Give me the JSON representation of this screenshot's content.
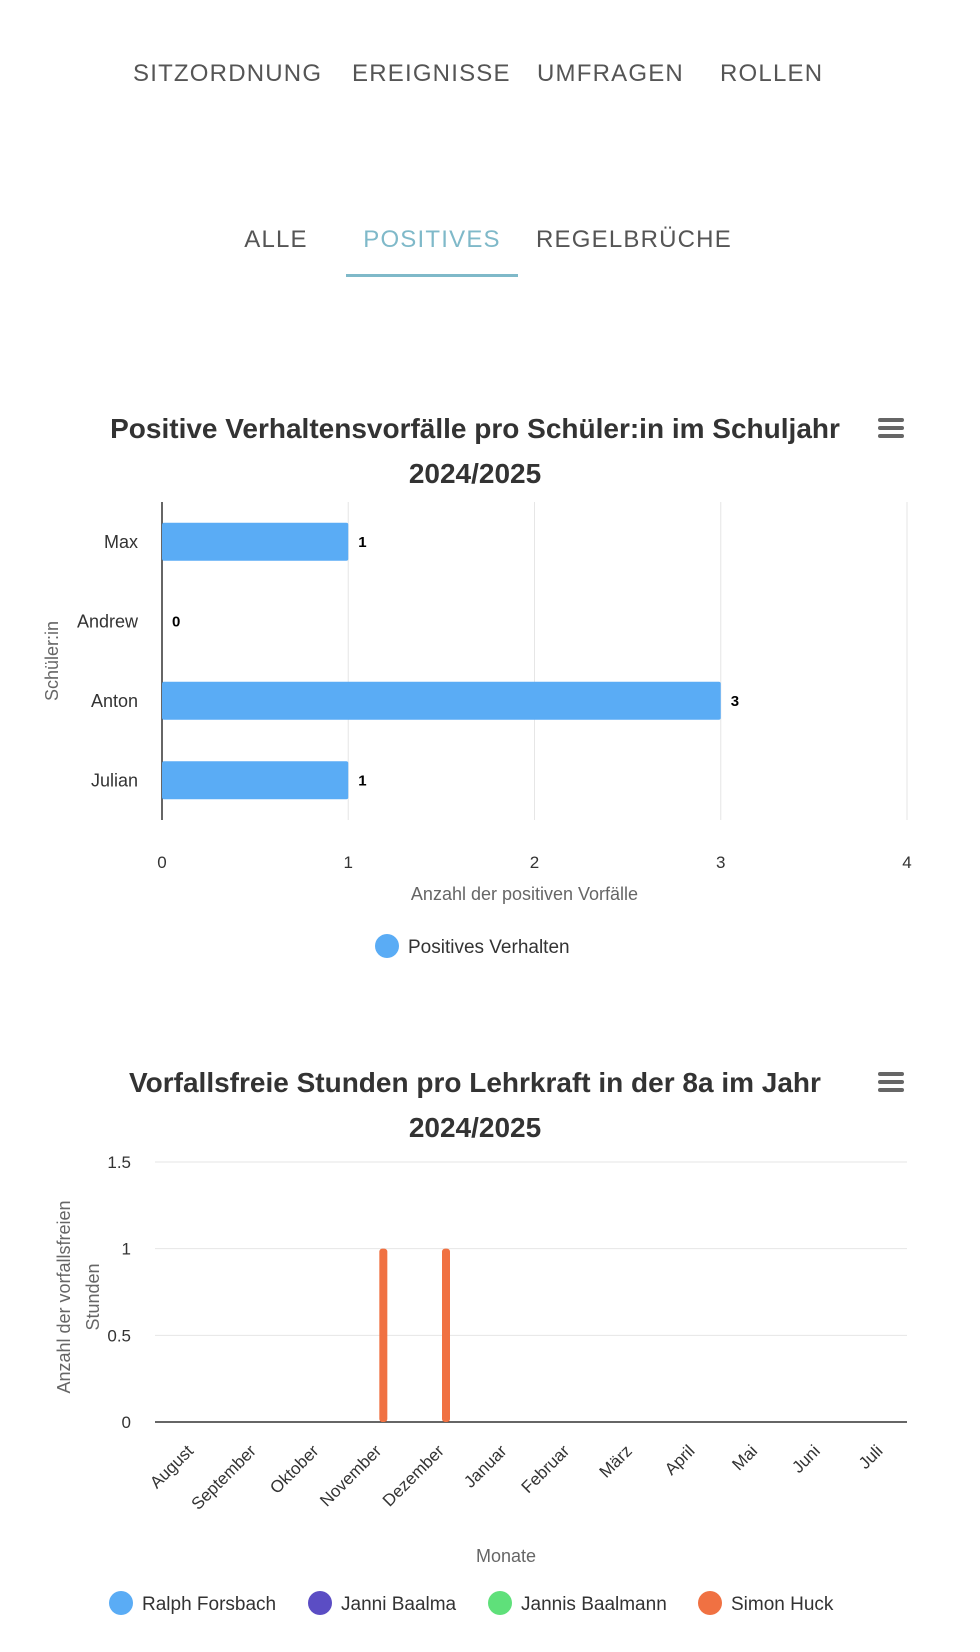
{
  "topnav": {
    "items": [
      "SITZORDNUNG",
      "EREIGNISSE",
      "UMFRAGEN",
      "ROLLEN"
    ]
  },
  "subtabs": {
    "items": [
      "ALLE",
      "POSITIVES",
      "REGELBRÜCHE"
    ],
    "active": "POSITIVES",
    "accent_color": "#7fb9c9"
  },
  "chart_data": [
    {
      "type": "bar",
      "orientation": "horizontal",
      "title": "Positive Verhaltensvorfälle pro Schüler:in im Schuljahr 2024/2025",
      "title_lines": [
        "Positive Verhaltensvorfälle pro Schüler:in im Schuljahr",
        "2024/2025"
      ],
      "categories": [
        "Max",
        "Andrew",
        "Anton",
        "Julian"
      ],
      "series": [
        {
          "name": "Positives Verhalten",
          "values": [
            1,
            0,
            3,
            1
          ],
          "color": "#5aacf5"
        }
      ],
      "xlabel": "Anzahl der positiven Vorfälle",
      "ylabel": "Schüler:in",
      "xlim": [
        0,
        4
      ],
      "x_ticks": [
        0,
        1,
        2,
        3,
        4
      ],
      "data_labels": true,
      "grid": true,
      "legend_placement": "bottom-center"
    },
    {
      "type": "bar",
      "orientation": "vertical",
      "title": "Vorfallsfreie Stunden pro Lehrkraft in der 8a im Jahr 2024/2025",
      "title_lines": [
        "Vorfallsfreie Stunden pro Lehrkraft in der 8a im Jahr",
        "2024/2025"
      ],
      "categories": [
        "August",
        "September",
        "Oktober",
        "November",
        "Dezember",
        "Januar",
        "Februar",
        "März",
        "April",
        "Mai",
        "Juni",
        "Juli"
      ],
      "series": [
        {
          "name": "Ralph Forsbach",
          "values": [
            0,
            0,
            0,
            0,
            0,
            0,
            0,
            0,
            0,
            0,
            0,
            0
          ],
          "color": "#5aacf5"
        },
        {
          "name": "Janni Baalma",
          "values": [
            0,
            0,
            0,
            0,
            0,
            0,
            0,
            0,
            0,
            0,
            0,
            0
          ],
          "color": "#5b4dc4"
        },
        {
          "name": "Jannis Baalmann",
          "values": [
            0,
            0,
            0,
            0,
            0,
            0,
            0,
            0,
            0,
            0,
            0,
            0
          ],
          "color": "#5fe07a"
        },
        {
          "name": "Simon Huck",
          "values": [
            0,
            0,
            0,
            1,
            1,
            0,
            0,
            0,
            0,
            0,
            0,
            0
          ],
          "color": "#f07142"
        }
      ],
      "xlabel": "Monate",
      "ylabel": "Anzahl der vorfallsfreien Stunden",
      "ylabel_lines": [
        "Anzahl der vorfallsfreien",
        "Stunden"
      ],
      "ylim": [
        0,
        1.5
      ],
      "y_ticks": [
        0,
        0.5,
        1,
        1.5
      ],
      "grid": true,
      "legend_placement": "bottom-center"
    }
  ]
}
